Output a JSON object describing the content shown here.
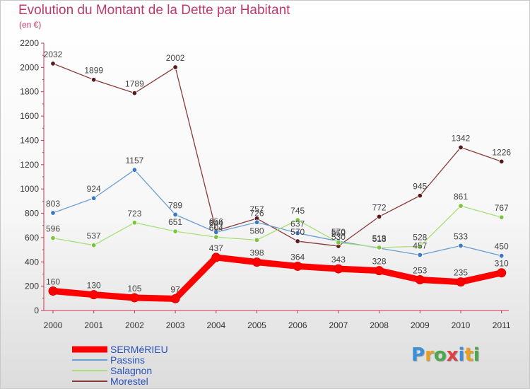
{
  "title": "Evolution du Montant de la Dette par Habitant",
  "subtitle": "(en €)",
  "logo": {
    "text": "Proxiti",
    "letters": [
      {
        "ch": "P",
        "color": "#3a8fd8"
      },
      {
        "ch": "r",
        "color": "#e8a020"
      },
      {
        "ch": "o",
        "color": "#4aa84a"
      },
      {
        "ch": "x",
        "color": "#e04040"
      },
      {
        "ch": "i",
        "color": "#3a8fd8"
      },
      {
        "ch": "t",
        "color": "#e8a020"
      },
      {
        "ch": "i",
        "color": "#4aa84a"
      }
    ]
  },
  "chart_data": {
    "type": "line",
    "title": "Evolution du Montant de la Dette par Habitant",
    "subtitle": "(en €)",
    "x": [
      "2000",
      "2001",
      "2002",
      "2003",
      "2004",
      "2005",
      "2006",
      "2007",
      "2008",
      "2009",
      "2010",
      "2011"
    ],
    "ylim": [
      0,
      2200
    ],
    "yticks": [
      0,
      200,
      400,
      600,
      800,
      1000,
      1200,
      1400,
      1600,
      1800,
      2000,
      2200
    ],
    "grid": false,
    "legend_position": "bottom-left",
    "series": [
      {
        "name": "SERMéRIEU",
        "color": "#ff0000",
        "width": "thick",
        "values": [
          160,
          130,
          105,
          97,
          437,
          398,
          364,
          343,
          328,
          253,
          235,
          310
        ],
        "labels": [
          "160",
          "130",
          "105",
          "97",
          "437",
          "398",
          "364",
          "343",
          "328",
          "253",
          "235",
          "310"
        ]
      },
      {
        "name": "Passins",
        "color": "#6b9fd4",
        "marker": "#3a78c8",
        "width": "thin",
        "values": [
          803,
          924,
          1157,
          789,
          644,
          726,
          637,
          570,
          513,
          457,
          533,
          450
        ],
        "labels": [
          "803",
          "924",
          "1157",
          "789",
          "644",
          "726",
          "637",
          "570",
          "513",
          "457",
          "533",
          "450"
        ]
      },
      {
        "name": "Salagnon",
        "color": "#a8df78",
        "marker": "#7cc63f",
        "width": "thin",
        "values": [
          596,
          537,
          723,
          651,
          604,
          580,
          745,
          559,
          518,
          528,
          861,
          767
        ],
        "labels": [
          "596",
          "537",
          "723",
          "651",
          "604",
          "580",
          "745",
          "559",
          "518",
          "528",
          "861",
          "767"
        ]
      },
      {
        "name": "Morestel",
        "color": "#8b3a3a",
        "marker": "#5a1a1a",
        "width": "thin",
        "values": [
          2032,
          1899,
          1789,
          2002,
          656,
          757,
          570,
          530,
          772,
          945,
          1342,
          1226
        ],
        "labels": [
          "2032",
          "1899",
          "1789",
          "2002",
          "656",
          "757",
          "570",
          "530",
          "772",
          "945",
          "1342",
          "1226"
        ]
      }
    ]
  }
}
